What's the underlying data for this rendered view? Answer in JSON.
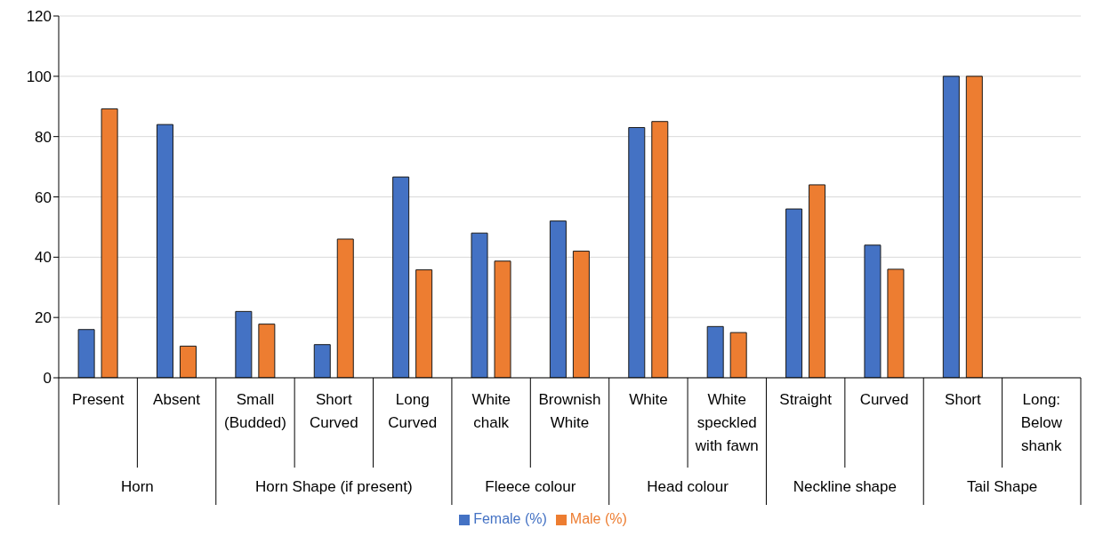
{
  "chart_data": {
    "type": "bar",
    "categories": [
      "Present",
      "Absent",
      "Small (Budded)",
      "Short Curved",
      "Long Curved",
      "White chalk",
      "Brownish White",
      "White",
      "White speckled with fawn",
      "Straight",
      "Curved",
      "Short",
      "Long: Below shank"
    ],
    "series": [
      {
        "name": "Female (%)",
        "color": "#4472c4",
        "values": [
          16,
          84,
          22,
          11,
          66.6,
          48,
          52,
          83,
          17,
          56,
          44,
          100,
          0
        ]
      },
      {
        "name": "Male (%)",
        "color": "#ed7d31",
        "values": [
          89.2,
          10.5,
          17.8,
          46,
          35.8,
          38.7,
          42,
          85,
          15,
          64,
          36,
          100,
          0
        ]
      }
    ],
    "annotations": [
      "Horn",
      "Horn Shape (if present)",
      "Fleece colour",
      "Head colour",
      "Neckline shape",
      "Tail Shape"
    ],
    "ylim": [
      0,
      120
    ],
    "yticks": [
      0,
      20,
      40,
      60,
      80,
      100,
      120
    ],
    "grid": "y",
    "legend": "bottom"
  }
}
